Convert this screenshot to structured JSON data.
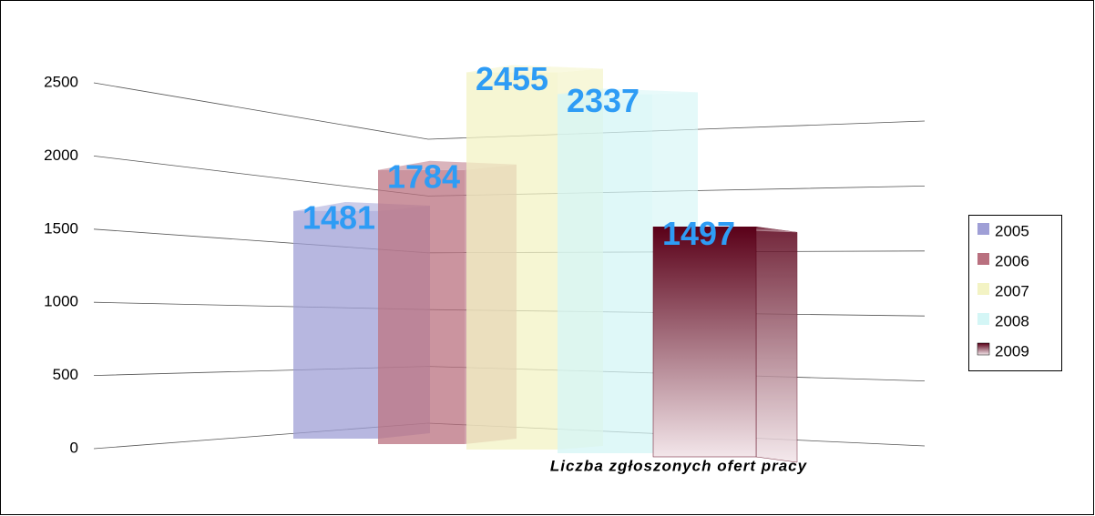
{
  "chart_data": {
    "type": "bar3d",
    "categories": [
      "Liczba zgłoszonych ofert pracy"
    ],
    "series": [
      {
        "name": "2005",
        "color": "#9f9fd6",
        "values": [
          1481
        ]
      },
      {
        "name": "2006",
        "color": "#b9707f",
        "values": [
          1784
        ]
      },
      {
        "name": "2007",
        "color": "#f3f3c4",
        "values": [
          2455
        ]
      },
      {
        "name": "2008",
        "color": "#d4f6f6",
        "values": [
          2337
        ]
      },
      {
        "name": "2009",
        "color": "#7a0020",
        "values": [
          1497
        ]
      }
    ],
    "ylim": [
      0,
      2500
    ],
    "yticks": [
      0,
      500,
      1000,
      1500,
      2000,
      2500
    ],
    "grid": true,
    "legend": "right"
  }
}
